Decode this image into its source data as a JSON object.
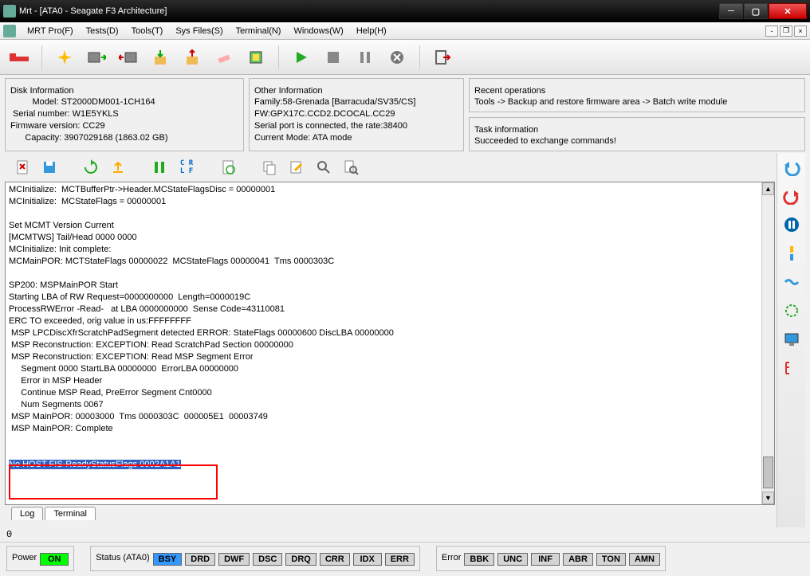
{
  "window": {
    "title": "Mrt - [ATA0 - Seagate F3 Architecture]"
  },
  "menus": {
    "mrt": "MRT Pro(F)",
    "tests": "Tests(D)",
    "tools": "Tools(T)",
    "sysfiles": "Sys Files(S)",
    "terminal": "Terminal(N)",
    "windows": "Windows(W)",
    "help": "Help(H)"
  },
  "disk_info": {
    "legend": "Disk Information",
    "model_label": "         Model:",
    "model": "ST2000DM001-1CH164",
    "serial_label": " Serial number:",
    "serial": "W1E5YKLS",
    "fw_label": "Firmware version:",
    "fw": "CC29",
    "capacity_label": "      Capacity:",
    "capacity": "3907029168 (1863.02 GB)"
  },
  "other_info": {
    "legend": "Other Information",
    "family": "Family:58-Grenada [Barracuda/SV35/CS]",
    "fwline": "FW:GPX17C.CCD2.DCOCAL.CC29",
    "serialport": "Serial port is connected, the rate:38400",
    "mode": "Current Mode: ATA mode"
  },
  "recent": {
    "legend": "Recent operations",
    "text": "Tools -> Backup and restore firmware area -> Batch write module"
  },
  "task": {
    "legend": "Task information",
    "text": "Succeeded to exchange commands!"
  },
  "console": {
    "lines": [
      "MCInitialize:  MCTBufferPtr->Header.MCStateFlagsDisc = 00000001",
      "MCInitialize:  MCStateFlags = 00000001",
      "",
      "Set MCMT Version Current",
      "[MCMTWS] Tail/Head 0000 0000",
      "MCInitialize: Init complete:",
      "MCMainPOR: MCTStateFlags 00000022  MCStateFlags 00000041  Tms 0000303C",
      "",
      "SP200: MSPMainPOR Start",
      "Starting LBA of RW Request=0000000000  Length=0000019C",
      "ProcessRWError -Read-   at LBA 0000000000  Sense Code=43110081",
      "ERC TO exceeded, orig value in us:FFFFFFFF",
      " MSP LPCDiscXfrScratchPadSegment detected ERROR: StateFlags 00000600 DiscLBA 00000000",
      " MSP Reconstruction: EXCEPTION: Read ScratchPad Section 00000000",
      " MSP Reconstruction: EXCEPTION: Read MSP Segment Error",
      "     Segment 0000 StartLBA 00000000  ErrorLBA 00000000",
      "     Error in MSP Header",
      "     Continue MSP Read, PreError Segment Cnt0000",
      "     Num Segments 0067",
      " MSP MainPOR: 00003000  Tms 0000303C  000005E1  00003749",
      " MSP MainPOR: Complete",
      "",
      ""
    ],
    "highlight": "No HOST FIS-ReadyStatusFlags 0002A1A1"
  },
  "tabs": {
    "log": "Log",
    "terminal": "Terminal"
  },
  "statusnum": "0",
  "bottom": {
    "power": {
      "legend": "Power",
      "on": "ON"
    },
    "status": {
      "legend": "Status (ATA0)",
      "bsy": "BSY",
      "drd": "DRD",
      "dwf": "DWF",
      "dsc": "DSC",
      "drq": "DRQ",
      "crr": "CRR",
      "idx": "IDX",
      "err": "ERR"
    },
    "error": {
      "legend": "Error",
      "bbk": "BBK",
      "unc": "UNC",
      "inf": "INF",
      "abr": "ABR",
      "ton": "TON",
      "amn": "AMN"
    }
  },
  "colors": {
    "highlight_bg": "#3060c0",
    "redbox": "#ff0000",
    "green": "#00ff00",
    "blue": "#3399ff"
  }
}
